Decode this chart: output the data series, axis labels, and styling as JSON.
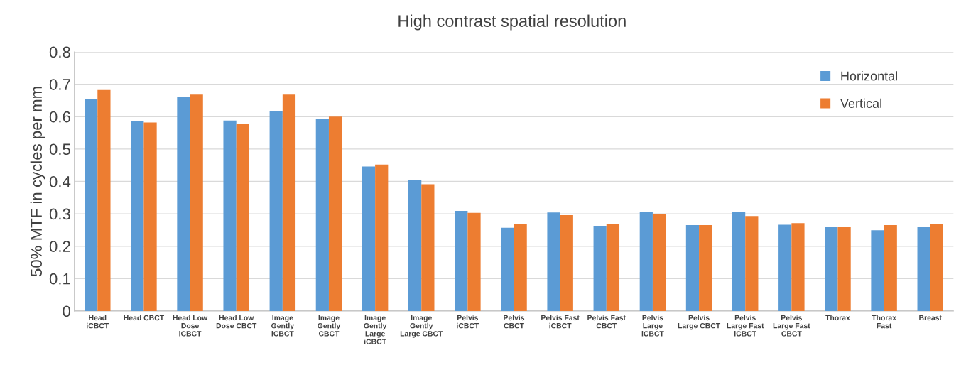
{
  "chart_data": {
    "type": "bar",
    "title": "High contrast spatial resolution",
    "ylabel": "50% MTF in cycles per mm",
    "categories": [
      "Head\niCBCT",
      "Head CBCT",
      "Head Low\nDose\niCBCT",
      "Head Low\nDose CBCT",
      "Image\nGently\niCBCT",
      "Image\nGently\nCBCT",
      "Image\nGently\nLarge\niCBCT",
      "Image\nGently\nLarge CBCT",
      "Pelvis\niCBCT",
      "Pelvis\nCBCT",
      "Pelvis Fast\niCBCT",
      "Pelvis Fast\nCBCT",
      "Pelvis\nLarge\niCBCT",
      "Pelvis\nLarge CBCT",
      "Pelvis\nLarge Fast\niCBCT",
      "Pelvis\nLarge Fast\nCBCT",
      "Thorax",
      "Thorax\nFast",
      "Breast"
    ],
    "series": [
      {
        "name": "Horizontal",
        "color": "#5b9bd5",
        "values": [
          0.655,
          0.585,
          0.66,
          0.588,
          0.616,
          0.593,
          0.446,
          0.405,
          0.309,
          0.257,
          0.304,
          0.263,
          0.306,
          0.265,
          0.306,
          0.266,
          0.26,
          0.249,
          0.26
        ]
      },
      {
        "name": "Vertical",
        "color": "#ed7d31",
        "values": [
          0.682,
          0.582,
          0.668,
          0.577,
          0.668,
          0.6,
          0.452,
          0.391,
          0.303,
          0.268,
          0.296,
          0.268,
          0.298,
          0.265,
          0.293,
          0.271,
          0.26,
          0.265,
          0.268
        ]
      }
    ],
    "ylim": [
      0,
      0.8
    ],
    "yticks": [
      0,
      0.1,
      0.2,
      0.3,
      0.4,
      0.5,
      0.6,
      0.7,
      0.8
    ],
    "grid": "y",
    "legend": "top right"
  }
}
